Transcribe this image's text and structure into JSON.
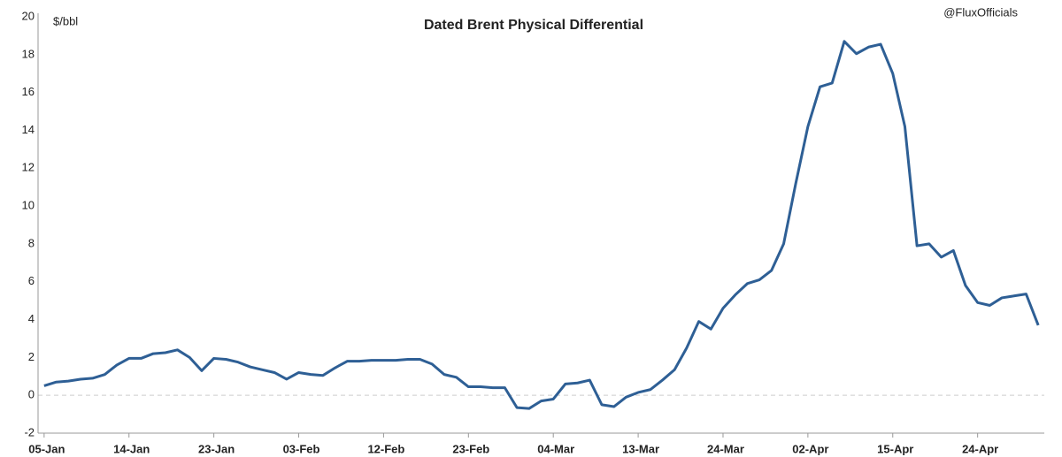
{
  "chart_data": {
    "type": "line",
    "title": "Dated Brent Physical Differential",
    "y_label": "$/bbl",
    "watermark": "@FluxOfficials",
    "categories": [
      "05-Jan",
      null,
      null,
      null,
      null,
      null,
      null,
      "14-Jan",
      null,
      null,
      null,
      null,
      null,
      null,
      "23-Jan",
      null,
      null,
      null,
      null,
      null,
      null,
      "03-Feb",
      null,
      null,
      null,
      null,
      null,
      null,
      "12-Feb",
      null,
      null,
      null,
      null,
      null,
      null,
      "23-Feb",
      null,
      null,
      null,
      null,
      null,
      null,
      "04-Mar",
      null,
      null,
      null,
      null,
      null,
      null,
      "13-Mar",
      null,
      null,
      null,
      null,
      null,
      null,
      "24-Mar",
      null,
      null,
      null,
      null,
      null,
      null,
      "02-Apr",
      null,
      null,
      null,
      null,
      null,
      null,
      "15-Apr",
      null,
      null,
      null,
      null,
      null,
      null,
      "24-Apr",
      null,
      null,
      null,
      null,
      null
    ],
    "series": [
      {
        "name": "Dated Brent Physical Differential",
        "color": "#2e5f95",
        "values": [
          0.5,
          0.7,
          0.75,
          0.85,
          0.9,
          1.1,
          1.6,
          1.95,
          1.95,
          2.2,
          2.25,
          2.4,
          2.0,
          1.3,
          1.95,
          1.9,
          1.75,
          1.5,
          1.35,
          1.2,
          0.85,
          1.2,
          1.1,
          1.05,
          1.45,
          1.8,
          1.8,
          1.85,
          1.85,
          1.85,
          1.9,
          1.9,
          1.65,
          1.1,
          0.95,
          0.45,
          0.45,
          0.4,
          0.4,
          -0.65,
          -0.7,
          -0.3,
          -0.2,
          0.6,
          0.65,
          0.8,
          -0.5,
          -0.6,
          -0.1,
          0.15,
          0.3,
          0.8,
          1.35,
          2.5,
          3.9,
          3.5,
          4.6,
          5.3,
          5.9,
          6.1,
          6.6,
          8.0,
          11.2,
          14.2,
          16.3,
          16.5,
          18.7,
          18.05,
          18.4,
          18.55,
          17.0,
          14.2,
          7.9,
          8.0,
          7.3,
          7.65,
          5.8,
          4.9,
          4.75,
          5.15,
          5.25,
          5.35,
          3.7
        ]
      }
    ],
    "ylim": [
      -2,
      20
    ],
    "yticks": [
      -2,
      0,
      2,
      4,
      6,
      8,
      10,
      12,
      14,
      16,
      18,
      20
    ],
    "zero_line": true
  }
}
